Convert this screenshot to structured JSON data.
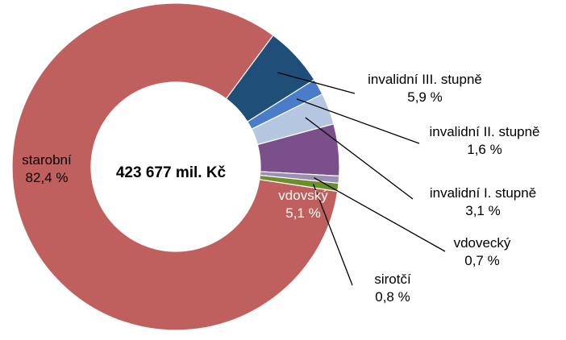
{
  "chart_data": {
    "type": "pie",
    "subtype": "donut",
    "center_label": "423 677 mil. Kč",
    "slices": [
      {
        "name": "starobní",
        "value": 82.4,
        "value_label": "82,4 %",
        "color": "#C0605E"
      },
      {
        "name": "invalidní III. stupně",
        "value": 5.9,
        "value_label": "5,9 %",
        "color": "#1F4E79"
      },
      {
        "name": "invalidní II. stupně",
        "value": 1.6,
        "value_label": "1,6 %",
        "color": "#4A7CC9"
      },
      {
        "name": "invalidní I. stupně",
        "value": 3.1,
        "value_label": "3,1 %",
        "color": "#B5C6E0"
      },
      {
        "name": "vdovský",
        "value": 5.1,
        "value_label": "5,1 %",
        "color": "#7B4F8A"
      },
      {
        "name": "vdovecký",
        "value": 0.7,
        "value_label": "0,7 %",
        "color": "#9B8EB5"
      },
      {
        "name": "sirotčí",
        "value": 0.8,
        "value_label": "0,8 %",
        "color": "#6E8E2B"
      }
    ]
  }
}
